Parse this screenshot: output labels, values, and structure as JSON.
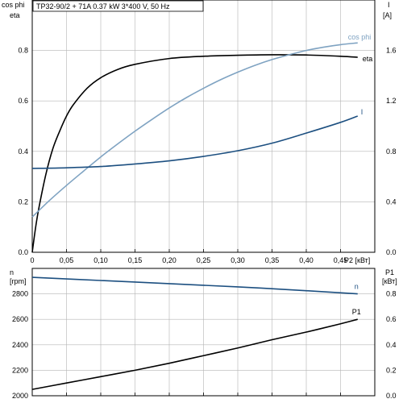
{
  "title": "TP32-90/2 + 71A   0.37 kW   3*400 V, 50 Hz",
  "chart_data": [
    {
      "type": "line",
      "panel": "top",
      "x_axis": {
        "label": "P2 [кВт]",
        "range": [
          0,
          0.5
        ],
        "ticks": [
          "0",
          "0,05",
          "0,10",
          "0,15",
          "0,20",
          "0,25",
          "0,30",
          "0,35",
          "0,40",
          "0,45"
        ],
        "tick_values": [
          0,
          0.05,
          0.1,
          0.15,
          0.2,
          0.25,
          0.3,
          0.35,
          0.4,
          0.45
        ]
      },
      "y_left": {
        "label_line1": "cos phi",
        "label_line2": "eta",
        "range": [
          0,
          1.0
        ],
        "ticks": [
          "0.0",
          "0.2",
          "0.4",
          "0.6",
          "0.8"
        ],
        "tick_values": [
          0,
          0.2,
          0.4,
          0.6,
          0.8
        ]
      },
      "y_right": {
        "label_line1": "I",
        "label_line2": "[A]",
        "range": [
          0,
          2.0
        ],
        "ticks": [
          "0.0",
          "0.4",
          "0.8",
          "1.2",
          "1.6"
        ],
        "tick_values": [
          0,
          0.4,
          0.8,
          1.2,
          1.6
        ]
      },
      "grid": true,
      "series": [
        {
          "name": "eta",
          "axis": "left",
          "color": "#000000",
          "x": [
            0,
            0.005,
            0.01,
            0.02,
            0.03,
            0.04,
            0.05,
            0.06,
            0.08,
            0.1,
            0.125,
            0.15,
            0.2,
            0.25,
            0.3,
            0.35,
            0.4,
            0.45,
            0.475
          ],
          "y": [
            0,
            0.1,
            0.18,
            0.31,
            0.41,
            0.48,
            0.54,
            0.585,
            0.65,
            0.692,
            0.725,
            0.745,
            0.768,
            0.777,
            0.781,
            0.783,
            0.782,
            0.777,
            0.773
          ]
        },
        {
          "name": "cos phi",
          "axis": "left",
          "color": "#7fa3c2",
          "x": [
            0,
            0.025,
            0.05,
            0.075,
            0.1,
            0.125,
            0.15,
            0.175,
            0.2,
            0.225,
            0.25,
            0.275,
            0.3,
            0.325,
            0.35,
            0.375,
            0.4,
            0.425,
            0.45,
            0.475
          ],
          "y": [
            0.14,
            0.205,
            0.265,
            0.322,
            0.378,
            0.43,
            0.48,
            0.527,
            0.572,
            0.613,
            0.65,
            0.684,
            0.714,
            0.741,
            0.764,
            0.783,
            0.8,
            0.813,
            0.823,
            0.83
          ]
        },
        {
          "name": "I",
          "axis": "right",
          "color": "#1c4f80",
          "x": [
            0,
            0.05,
            0.1,
            0.15,
            0.2,
            0.25,
            0.3,
            0.35,
            0.4,
            0.45,
            0.475
          ],
          "y": [
            0.665,
            0.67,
            0.68,
            0.7,
            0.725,
            0.76,
            0.805,
            0.865,
            0.945,
            1.03,
            1.08
          ]
        }
      ]
    },
    {
      "type": "line",
      "panel": "bottom",
      "x_axis": {
        "range": [
          0,
          0.5
        ]
      },
      "y_left": {
        "label_line1": "n",
        "label_line2": "[rpm]",
        "range": [
          2000,
          3000
        ],
        "ticks": [
          "2000",
          "2200",
          "2400",
          "2600",
          "2800"
        ],
        "tick_values": [
          2000,
          2200,
          2400,
          2600,
          2800
        ]
      },
      "y_right": {
        "label_line1": "P1",
        "label_line2": "[кВт]",
        "range": [
          0,
          1.0
        ],
        "ticks": [
          "0.0",
          "0.2",
          "0.4",
          "0.6",
          "0.8"
        ],
        "tick_values": [
          0,
          0.2,
          0.4,
          0.6,
          0.8
        ]
      },
      "grid": true,
      "series": [
        {
          "name": "n",
          "axis": "left",
          "color": "#1c4f80",
          "x": [
            0,
            0.1,
            0.2,
            0.3,
            0.4,
            0.475
          ],
          "y": [
            2930,
            2905,
            2880,
            2855,
            2825,
            2800
          ]
        },
        {
          "name": "P1",
          "axis": "right",
          "color": "#000000",
          "x": [
            0,
            0.05,
            0.1,
            0.15,
            0.2,
            0.25,
            0.3,
            0.35,
            0.4,
            0.45,
            0.475
          ],
          "y": [
            0.05,
            0.1,
            0.15,
            0.2,
            0.255,
            0.315,
            0.375,
            0.44,
            0.5,
            0.565,
            0.6
          ]
        }
      ]
    }
  ]
}
